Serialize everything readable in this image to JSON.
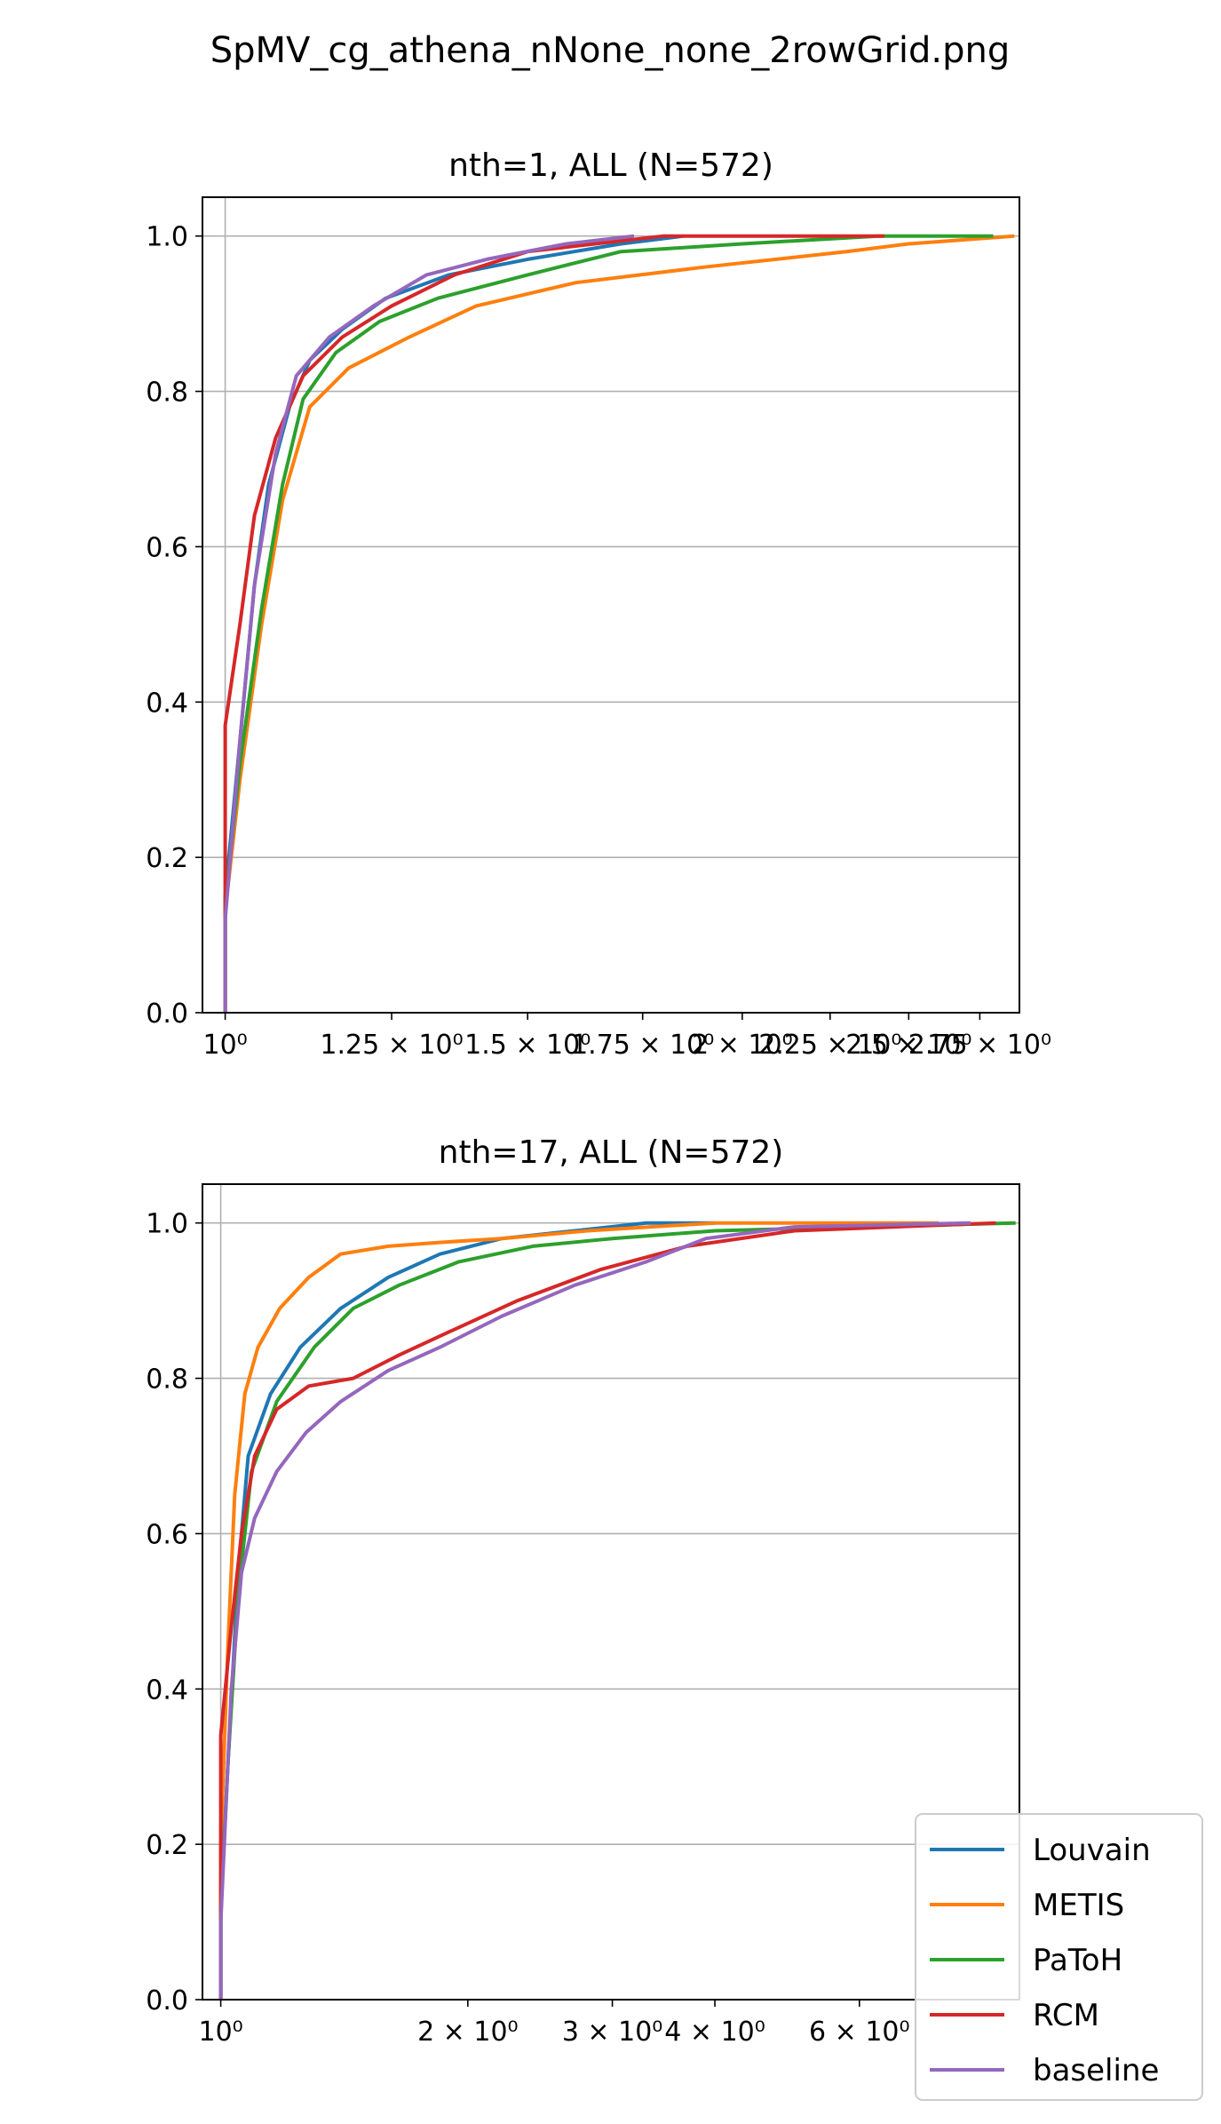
{
  "figure": {
    "suptitle": "SpMV_cg_athena_nNone_none_2rowGrid.png"
  },
  "colors": {
    "Louvain": "#1f77b4",
    "METIS": "#ff7f0e",
    "PaToH": "#2ca02c",
    "RCM": "#d62728",
    "baseline": "#9467bd",
    "grid": "#b0b0b0"
  },
  "chart_data": [
    {
      "type": "line",
      "title": "nth=1, ALL (N=572)",
      "xscale": "log",
      "xlim": [
        0.97,
        2.9
      ],
      "ylim": [
        0.0,
        1.05
      ],
      "grid": true,
      "xticks": [
        {
          "value": 1.0,
          "label": "10⁰"
        },
        {
          "value": 1.25,
          "label": "1.25 × 10⁰"
        },
        {
          "value": 1.5,
          "label": "1.5 × 10⁰"
        },
        {
          "value": 1.75,
          "label": "1.75 × 10⁰"
        },
        {
          "value": 2.0,
          "label": "2 × 10⁰"
        },
        {
          "value": 2.25,
          "label": "2.25 × 10⁰"
        },
        {
          "value": 2.5,
          "label": "2.5 × 10⁰"
        },
        {
          "value": 2.75,
          "label": "2.75 × 10⁰"
        }
      ],
      "yticks": [
        "0.0",
        "0.2",
        "0.4",
        "0.6",
        "0.8",
        "1.0"
      ],
      "series": [
        {
          "name": "Louvain",
          "x": [
            1.0,
            1.0,
            1.02,
            1.04,
            1.06,
            1.09,
            1.12,
            1.17,
            1.24,
            1.35,
            1.5,
            1.7,
            1.85
          ],
          "y": [
            0.0,
            0.15,
            0.35,
            0.55,
            0.68,
            0.78,
            0.84,
            0.88,
            0.92,
            0.95,
            0.97,
            0.99,
            1.0
          ]
        },
        {
          "name": "METIS",
          "x": [
            1.0,
            1.0,
            1.02,
            1.05,
            1.08,
            1.12,
            1.18,
            1.28,
            1.4,
            1.6,
            1.9,
            2.3,
            2.5,
            2.88
          ],
          "y": [
            0.0,
            0.13,
            0.3,
            0.5,
            0.66,
            0.78,
            0.83,
            0.87,
            0.91,
            0.94,
            0.96,
            0.98,
            0.99,
            1.0
          ]
        },
        {
          "name": "PaToH",
          "x": [
            1.0,
            1.0,
            1.02,
            1.05,
            1.08,
            1.11,
            1.16,
            1.23,
            1.33,
            1.5,
            1.7,
            2.0,
            2.4,
            2.8
          ],
          "y": [
            0.0,
            0.14,
            0.32,
            0.52,
            0.68,
            0.79,
            0.85,
            0.89,
            0.92,
            0.95,
            0.98,
            0.99,
            1.0,
            1.0
          ]
        },
        {
          "name": "RCM",
          "x": [
            1.0,
            1.0,
            1.0,
            1.02,
            1.04,
            1.07,
            1.11,
            1.17,
            1.25,
            1.36,
            1.5,
            1.8,
            2.42
          ],
          "y": [
            0.0,
            0.2,
            0.37,
            0.5,
            0.64,
            0.74,
            0.82,
            0.87,
            0.91,
            0.95,
            0.98,
            1.0,
            1.0
          ]
        },
        {
          "name": "baseline",
          "x": [
            1.0,
            1.0,
            1.02,
            1.04,
            1.07,
            1.1,
            1.15,
            1.22,
            1.31,
            1.42,
            1.58,
            1.73
          ],
          "y": [
            0.0,
            0.12,
            0.35,
            0.55,
            0.72,
            0.82,
            0.87,
            0.91,
            0.95,
            0.97,
            0.99,
            1.0
          ]
        }
      ]
    },
    {
      "type": "line",
      "title": "nth=17, ALL (N=572)",
      "xscale": "log",
      "xlim": [
        0.95,
        9.4
      ],
      "ylim": [
        0.0,
        1.05
      ],
      "grid": true,
      "xticks": [
        {
          "value": 1.0,
          "label": "10⁰"
        },
        {
          "value": 2.0,
          "label": "2 × 10⁰"
        },
        {
          "value": 3.0,
          "label": "3 × 10⁰"
        },
        {
          "value": 4.0,
          "label": "4 × 10⁰"
        },
        {
          "value": 6.0,
          "label": "6 × 10⁰"
        }
      ],
      "yticks": [
        "0.0",
        "0.2",
        "0.4",
        "0.6",
        "0.8",
        "1.0"
      ],
      "legend": {
        "location": "lower right",
        "entries": [
          "Louvain",
          "METIS",
          "PaToH",
          "RCM",
          "baseline"
        ]
      },
      "series": [
        {
          "name": "Louvain",
          "x": [
            1.0,
            1.0,
            1.02,
            1.05,
            1.08,
            1.15,
            1.25,
            1.4,
            1.6,
            1.85,
            2.2,
            2.7,
            3.3,
            4.0
          ],
          "y": [
            0.0,
            0.12,
            0.3,
            0.55,
            0.7,
            0.78,
            0.84,
            0.89,
            0.93,
            0.96,
            0.98,
            0.99,
            1.0,
            1.0
          ]
        },
        {
          "name": "METIS",
          "x": [
            1.0,
            1.0,
            1.02,
            1.04,
            1.07,
            1.11,
            1.18,
            1.28,
            1.4,
            1.6,
            1.85,
            2.2,
            2.8,
            4.0,
            7.5
          ],
          "y": [
            0.0,
            0.2,
            0.45,
            0.65,
            0.78,
            0.84,
            0.89,
            0.93,
            0.96,
            0.97,
            0.975,
            0.98,
            0.99,
            1.0,
            1.0
          ]
        },
        {
          "name": "PaToH",
          "x": [
            1.0,
            1.0,
            1.02,
            1.05,
            1.09,
            1.17,
            1.3,
            1.45,
            1.65,
            1.95,
            2.4,
            3.0,
            4.0,
            6.0,
            9.3
          ],
          "y": [
            0.0,
            0.12,
            0.3,
            0.52,
            0.68,
            0.77,
            0.84,
            0.89,
            0.92,
            0.95,
            0.97,
            0.98,
            0.99,
            0.995,
            1.0
          ]
        },
        {
          "name": "RCM",
          "x": [
            1.0,
            1.0,
            1.0,
            1.03,
            1.06,
            1.1,
            1.17,
            1.28,
            1.45,
            1.65,
            1.9,
            2.3,
            2.9,
            3.7,
            5.0,
            8.8
          ],
          "y": [
            0.0,
            0.2,
            0.34,
            0.48,
            0.6,
            0.7,
            0.76,
            0.79,
            0.8,
            0.83,
            0.86,
            0.9,
            0.94,
            0.97,
            0.99,
            1.0
          ]
        },
        {
          "name": "baseline",
          "x": [
            1.0,
            1.0,
            1.03,
            1.06,
            1.1,
            1.17,
            1.27,
            1.4,
            1.6,
            1.85,
            2.2,
            2.7,
            3.3,
            3.9,
            5.0,
            8.2
          ],
          "y": [
            0.0,
            0.1,
            0.4,
            0.55,
            0.62,
            0.68,
            0.73,
            0.77,
            0.81,
            0.84,
            0.88,
            0.92,
            0.95,
            0.98,
            0.995,
            1.0
          ]
        }
      ]
    }
  ]
}
